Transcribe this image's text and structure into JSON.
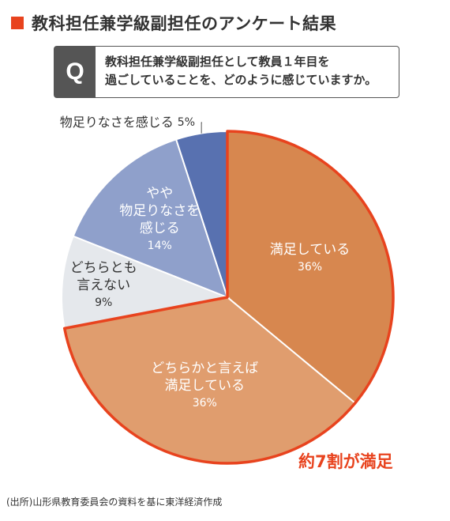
{
  "title": "教科担任兼学級副担任のアンケート結果",
  "question": {
    "badge": "Q",
    "line1": "教科担任兼学級副担任として教員１年目を",
    "line2": "過ごしていることを、どのように感じていますか。"
  },
  "highlight_label": "約7割が満足",
  "source": "(出所)山形県教育委員会の資料を基に東洋経済作成",
  "colors": {
    "accent": "#e8431e",
    "satisfied": "#d7874f",
    "rather_satisfied": "#e09d6e",
    "neutral": "#e5e8ec",
    "rather_unsatisfied": "#8fa0cb",
    "unsatisfied": "#5871b0"
  },
  "chart_data": {
    "type": "pie",
    "slices": [
      {
        "label_lines": [
          "満足している"
        ],
        "value": 36,
        "value_text": "36%",
        "color": "#d7874f"
      },
      {
        "label_lines": [
          "どちらかと言えば",
          "満足している"
        ],
        "value": 36,
        "value_text": "36%",
        "color": "#e09d6e"
      },
      {
        "label_lines": [
          "どちらとも",
          "言えない"
        ],
        "value": 9,
        "value_text": "9%",
        "color": "#e5e8ec"
      },
      {
        "label_lines": [
          "やや",
          "物足りなさを",
          "感じる"
        ],
        "value": 14,
        "value_text": "14%",
        "color": "#8fa0cb"
      },
      {
        "label_lines": [
          "物足りなさを感じる"
        ],
        "value": 5,
        "value_text": "5%",
        "color": "#5871b0"
      }
    ]
  }
}
